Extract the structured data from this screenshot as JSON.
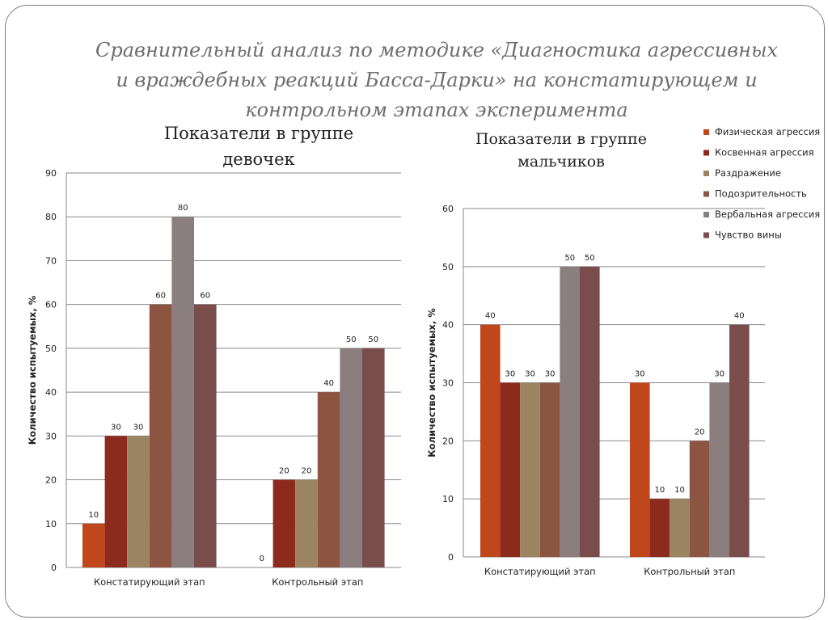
{
  "slide_title": "Сравнительный анализ по методике «Диагностика агрессивных и враждебных реакций Басса-Дарки» на констатирующем и контрольном этапах эксперимента",
  "legend": [
    {
      "name": "Физическая агрессия",
      "color": "#c0461c"
    },
    {
      "name": "Косвенная агрессия",
      "color": "#8c2a1e"
    },
    {
      "name": "Раздражение",
      "color": "#9a8462"
    },
    {
      "name": "Подозрительность",
      "color": "#8b5542"
    },
    {
      "name": "Вербальная агрессия",
      "color": "#8b7e7e"
    },
    {
      "name": "Чувство вины",
      "color": "#7a4d4d"
    }
  ],
  "chart_data": [
    {
      "type": "bar",
      "title_lines": [
        "Показатели в группе",
        "девочек"
      ],
      "ylabel": "Количество испытуемых, %",
      "ylim": [
        0,
        90
      ],
      "yticks": [
        0,
        10,
        20,
        30,
        40,
        50,
        60,
        70,
        80,
        90
      ],
      "categories": [
        "Констатирующий этап",
        "Контрольный этап"
      ],
      "series": [
        {
          "name": "Физическая агрессия",
          "values": [
            10,
            0
          ]
        },
        {
          "name": "Косвенная агрессия",
          "values": [
            30,
            20
          ]
        },
        {
          "name": "Раздражение",
          "values": [
            30,
            20
          ]
        },
        {
          "name": "Подозрительность",
          "values": [
            60,
            40
          ]
        },
        {
          "name": "Вербальная агрессия",
          "values": [
            80,
            50
          ]
        },
        {
          "name": "Чувство вины",
          "values": [
            60,
            50
          ]
        }
      ],
      "grid": true
    },
    {
      "type": "bar",
      "title_lines": [
        "Показатели в группе",
        "мальчиков"
      ],
      "ylabel": "Количество испытуемых, %",
      "ylim": [
        0,
        60
      ],
      "yticks": [
        0,
        10,
        20,
        30,
        40,
        50,
        60
      ],
      "categories": [
        "Констатирующий этап",
        "Контрольный этап"
      ],
      "series": [
        {
          "name": "Физическая агрессия",
          "values": [
            40,
            30
          ]
        },
        {
          "name": "Косвенная агрессия",
          "values": [
            30,
            10
          ]
        },
        {
          "name": "Раздражение",
          "values": [
            30,
            10
          ]
        },
        {
          "name": "Подозрительность",
          "values": [
            30,
            20
          ]
        },
        {
          "name": "Вербальная агрессия",
          "values": [
            50,
            30
          ]
        },
        {
          "name": "Чувство вины",
          "values": [
            50,
            40
          ]
        }
      ],
      "grid": true,
      "legend_position": "top-right"
    }
  ]
}
